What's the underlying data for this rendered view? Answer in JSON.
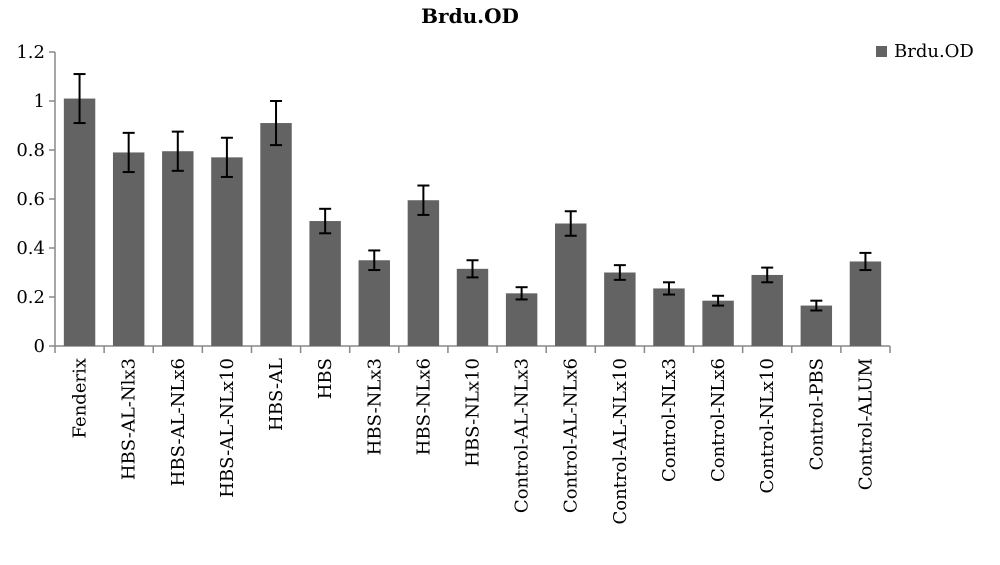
{
  "chart_data": {
    "type": "bar",
    "title": "Brdu.OD",
    "xlabel": "",
    "ylabel": "",
    "ylim": [
      0,
      1.2
    ],
    "yticks": [
      "0",
      "0.2",
      "0.4",
      "0.6",
      "0.8",
      "1",
      "1.2"
    ],
    "grid": false,
    "legend_position": "top-right",
    "categories": [
      "Fenderix",
      "HBS-AL-Nlx3",
      "HBS-AL-NLx6",
      "HBS-AL-NLx10",
      "HBS-AL",
      "HBS",
      "HBS-NLx3",
      "HBS-NLx6",
      "HBS-NLx10",
      "Control-AL-NLx3",
      "Control-AL-NLx6",
      "Control-AL-NLx10",
      "Control-NLx3",
      "Control-NLx6",
      "Control-NLx10",
      "Control-PBS",
      "Control-ALUM"
    ],
    "series": [
      {
        "name": "Brdu.OD",
        "color": "#636363",
        "values": [
          1.01,
          0.79,
          0.795,
          0.77,
          0.91,
          0.51,
          0.35,
          0.595,
          0.315,
          0.215,
          0.5,
          0.3,
          0.235,
          0.185,
          0.29,
          0.165,
          0.345
        ],
        "error": [
          0.1,
          0.08,
          0.08,
          0.08,
          0.09,
          0.05,
          0.04,
          0.06,
          0.035,
          0.025,
          0.05,
          0.03,
          0.025,
          0.02,
          0.03,
          0.02,
          0.035
        ]
      }
    ]
  }
}
